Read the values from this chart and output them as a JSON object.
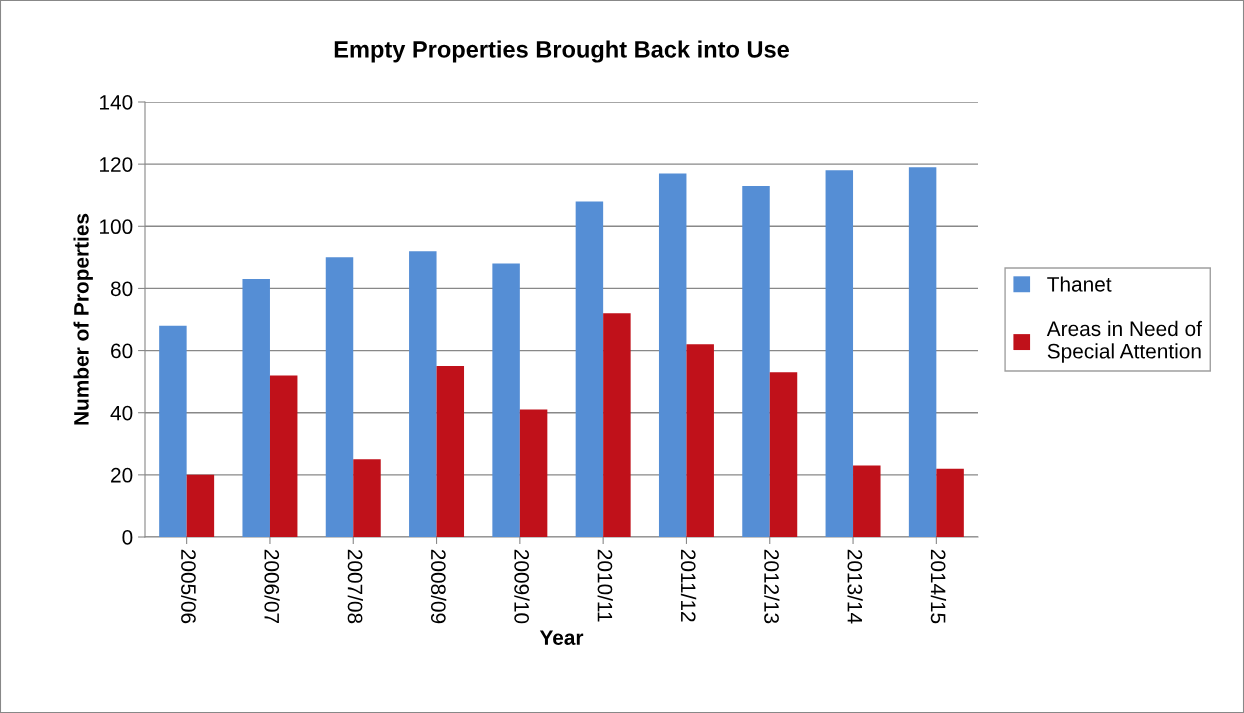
{
  "chart_data": {
    "type": "bar",
    "title": "Empty Properties Brought Back into Use",
    "xlabel": "Year",
    "ylabel": "Number of Properties",
    "categories": [
      "2005/06",
      "2006/07",
      "2007/08",
      "2008/09",
      "2009/10",
      "2010/11",
      "2011/12",
      "2012/13",
      "2013/14",
      "2014/15"
    ],
    "series": [
      {
        "name": "Thanet",
        "color": "#558ed5",
        "values": [
          68,
          83,
          90,
          92,
          88,
          108,
          117,
          113,
          118,
          119
        ]
      },
      {
        "name": "Areas in Need of\nSpecial Attention",
        "color": "#c0111a",
        "values": [
          20,
          52,
          25,
          55,
          41,
          72,
          62,
          53,
          23,
          22
        ]
      }
    ],
    "ylim": [
      0,
      140
    ],
    "yticks": [
      0,
      20,
      40,
      60,
      80,
      100,
      120,
      140
    ],
    "grid": "y",
    "legend": "right"
  }
}
